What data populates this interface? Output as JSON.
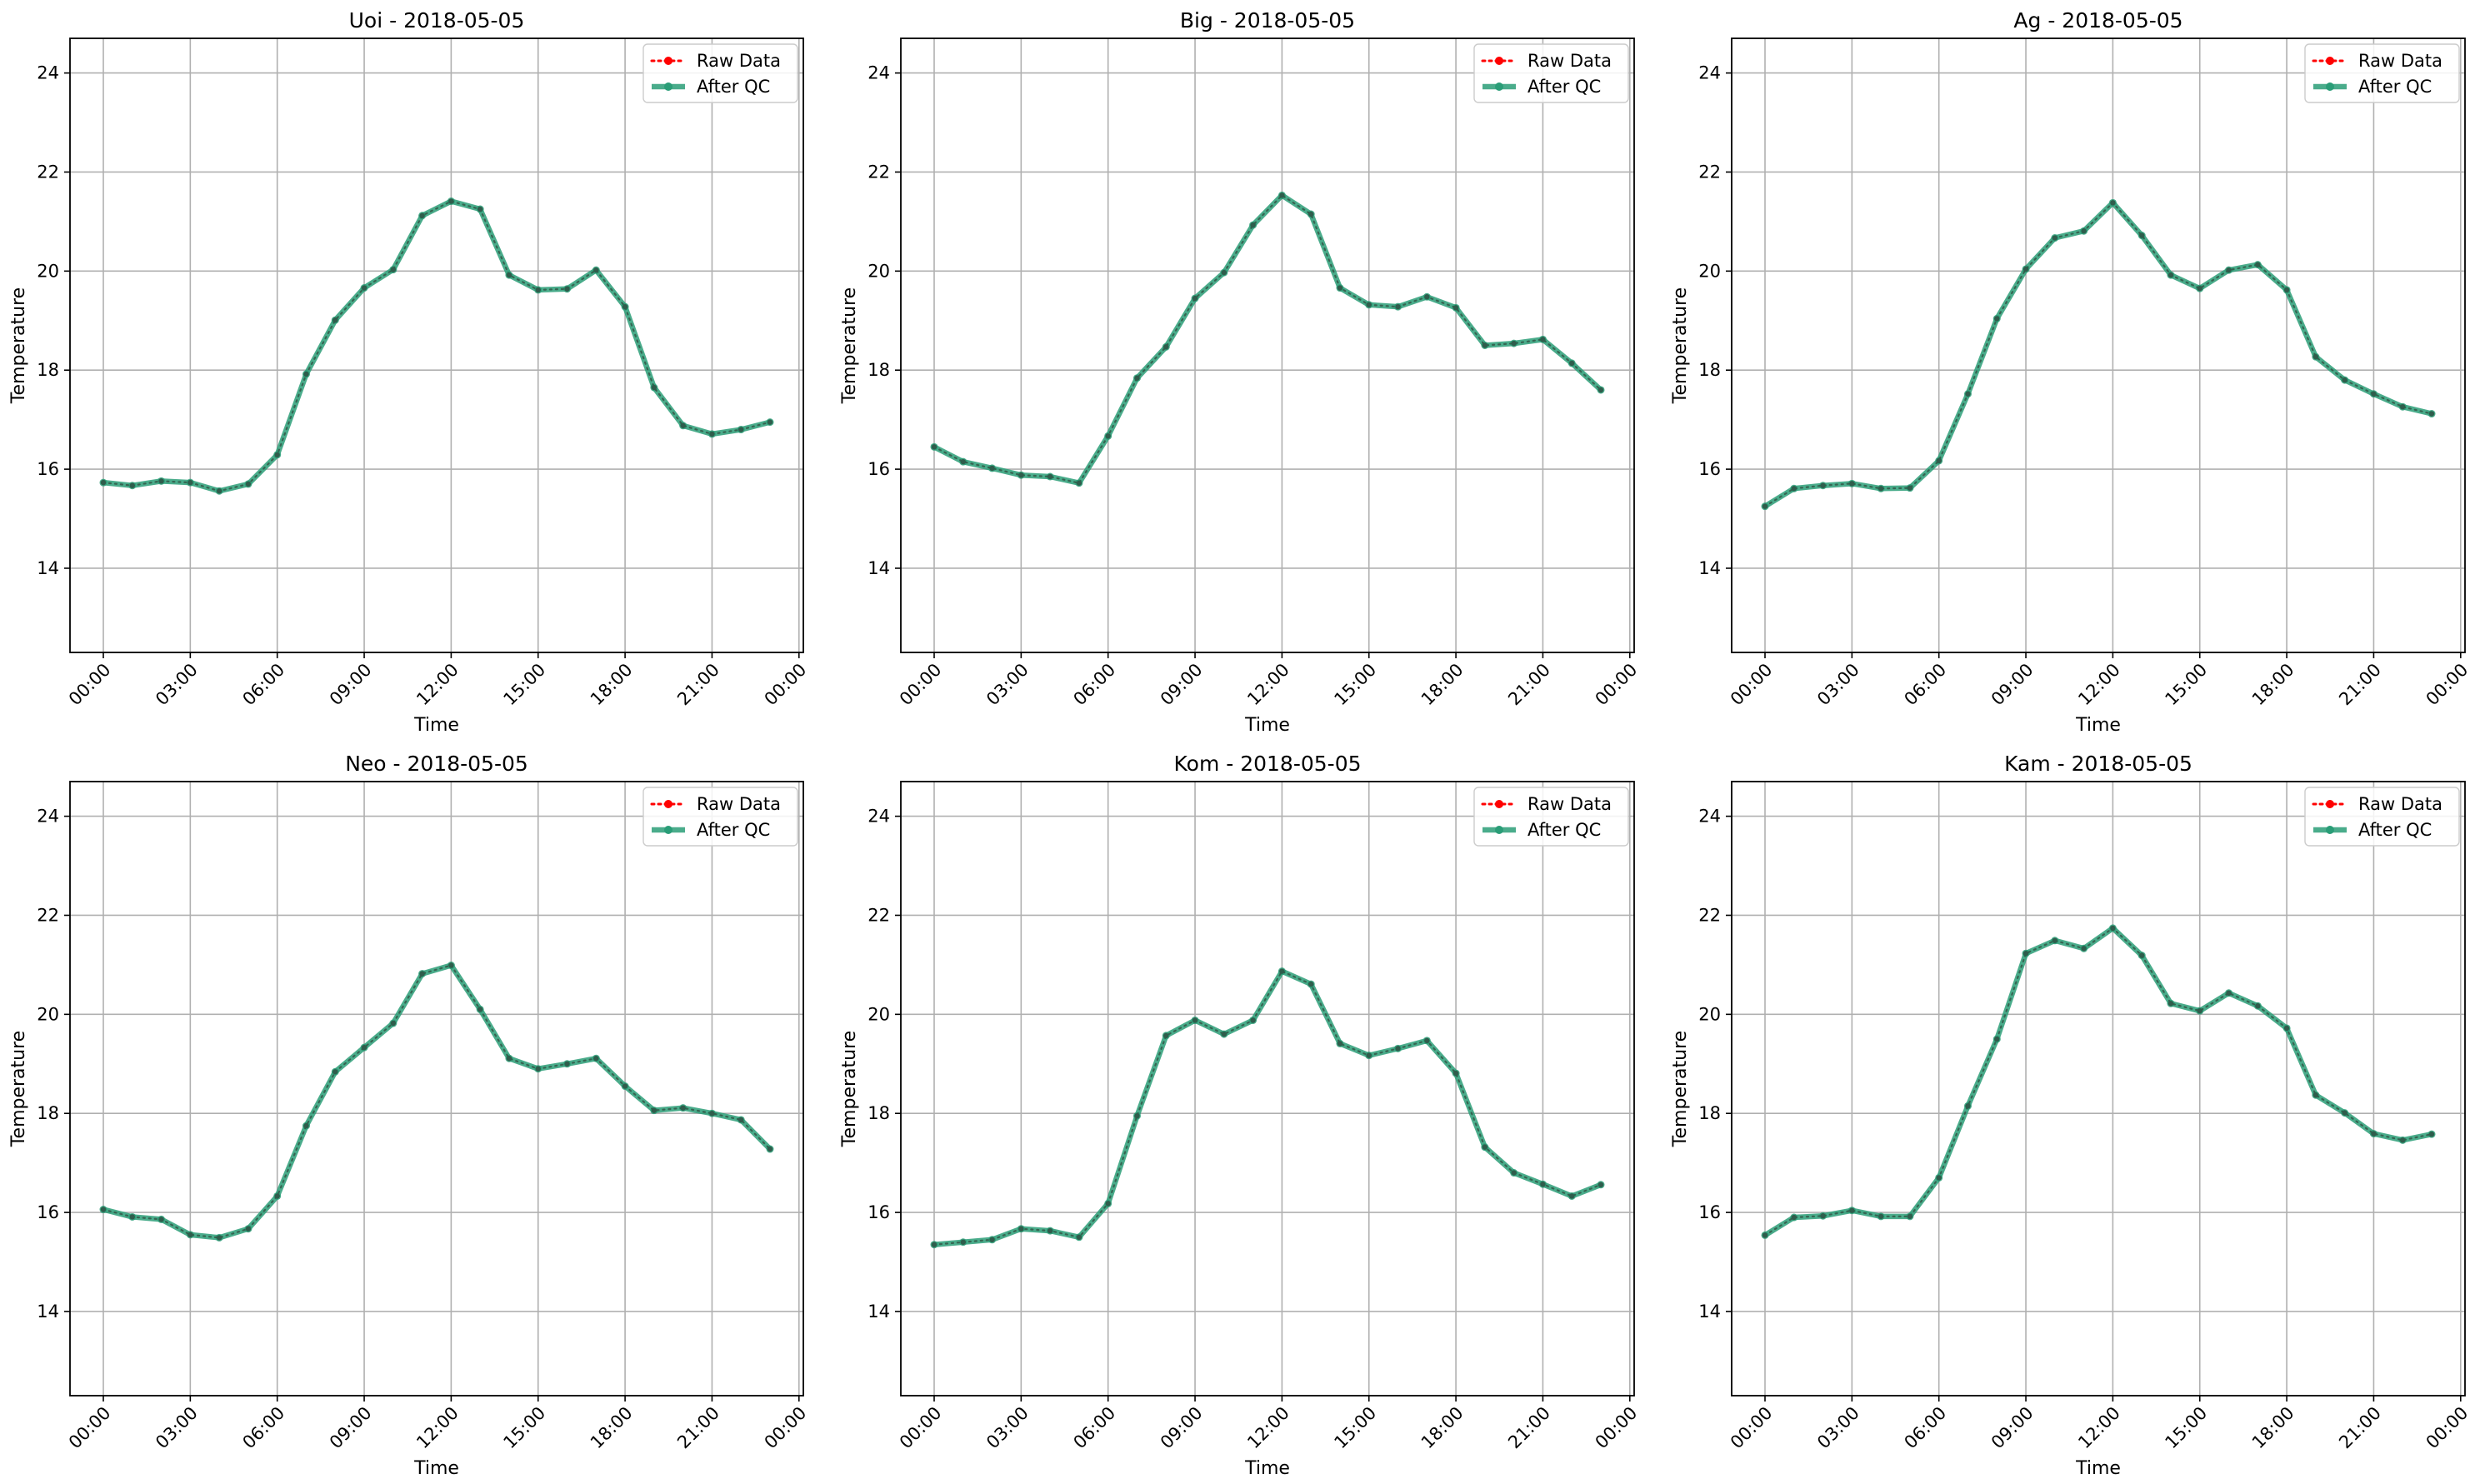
{
  "chart_data": [
    {
      "type": "line",
      "title": "Uoi - 2018-05-05",
      "xlabel": "Time",
      "ylabel": "Temperature",
      "xlim": [
        -1.15,
        24.15
      ],
      "ylim": [
        12.3,
        24.7
      ],
      "xticks": [
        "00:00",
        "03:00",
        "06:00",
        "09:00",
        "12:00",
        "15:00",
        "18:00",
        "21:00",
        "00:00"
      ],
      "yticks": [
        14,
        16,
        18,
        20,
        22,
        24
      ],
      "grid": true,
      "legend_position": "top-right",
      "x": [
        0,
        1,
        2,
        3,
        4,
        5,
        6,
        7,
        8,
        9,
        10,
        11,
        12,
        13,
        14,
        15,
        16,
        17,
        18,
        19,
        20,
        21,
        22,
        23
      ],
      "series": [
        {
          "name": "Raw Data",
          "color": "#ff0000",
          "values": [
            15.73,
            15.67,
            15.76,
            15.73,
            15.56,
            15.7,
            16.29,
            17.92,
            19.01,
            19.66,
            20.03,
            21.12,
            21.41,
            21.25,
            19.92,
            19.62,
            19.64,
            20.02,
            19.28,
            17.65,
            16.88,
            16.71,
            16.8,
            16.95
          ]
        },
        {
          "name": "After QC",
          "color": "#2a9d77",
          "values": [
            15.73,
            15.67,
            15.76,
            15.73,
            15.56,
            15.7,
            16.29,
            17.92,
            19.01,
            19.66,
            20.03,
            21.12,
            21.41,
            21.25,
            19.92,
            19.62,
            19.64,
            20.02,
            19.28,
            17.65,
            16.88,
            16.71,
            16.8,
            16.95
          ]
        }
      ]
    },
    {
      "type": "line",
      "title": "Big - 2018-05-05",
      "xlabel": "Time",
      "ylabel": "Temperature",
      "xlim": [
        -1.15,
        24.15
      ],
      "ylim": [
        12.3,
        24.7
      ],
      "xticks": [
        "00:00",
        "03:00",
        "06:00",
        "09:00",
        "12:00",
        "15:00",
        "18:00",
        "21:00",
        "00:00"
      ],
      "yticks": [
        14,
        16,
        18,
        20,
        22,
        24
      ],
      "grid": true,
      "legend_position": "top-right",
      "x": [
        0,
        1,
        2,
        3,
        4,
        5,
        6,
        7,
        8,
        9,
        10,
        11,
        12,
        13,
        14,
        15,
        16,
        17,
        18,
        19,
        20,
        21,
        22,
        23
      ],
      "series": [
        {
          "name": "Raw Data",
          "color": "#ff0000",
          "values": [
            16.45,
            16.15,
            16.02,
            15.88,
            15.85,
            15.72,
            16.67,
            17.84,
            18.47,
            19.45,
            19.97,
            20.93,
            21.53,
            21.15,
            19.66,
            19.32,
            19.28,
            19.48,
            19.26,
            18.5,
            18.54,
            18.62,
            18.14,
            17.6
          ]
        },
        {
          "name": "After QC",
          "color": "#2a9d77",
          "values": [
            16.45,
            16.15,
            16.02,
            15.88,
            15.85,
            15.72,
            16.67,
            17.84,
            18.47,
            19.45,
            19.97,
            20.93,
            21.53,
            21.15,
            19.66,
            19.32,
            19.28,
            19.48,
            19.26,
            18.5,
            18.54,
            18.62,
            18.14,
            17.6
          ]
        }
      ]
    },
    {
      "type": "line",
      "title": "Ag - 2018-05-05",
      "xlabel": "Time",
      "ylabel": "Temperature",
      "xlim": [
        -1.15,
        24.15
      ],
      "ylim": [
        12.3,
        24.7
      ],
      "xticks": [
        "00:00",
        "03:00",
        "06:00",
        "09:00",
        "12:00",
        "15:00",
        "18:00",
        "21:00",
        "00:00"
      ],
      "yticks": [
        14,
        16,
        18,
        20,
        22,
        24
      ],
      "grid": true,
      "legend_position": "top-right",
      "x": [
        0,
        1,
        2,
        3,
        4,
        5,
        6,
        7,
        8,
        9,
        10,
        11,
        12,
        13,
        14,
        15,
        16,
        17,
        18,
        19,
        20,
        21,
        22,
        23
      ],
      "series": [
        {
          "name": "Raw Data",
          "color": "#ff0000",
          "values": [
            15.25,
            15.61,
            15.67,
            15.71,
            15.61,
            15.62,
            16.17,
            17.52,
            19.04,
            20.04,
            20.67,
            20.81,
            21.38,
            20.72,
            19.92,
            19.65,
            20.02,
            20.13,
            19.62,
            18.27,
            17.8,
            17.52,
            17.26,
            17.12
          ]
        },
        {
          "name": "After QC",
          "color": "#2a9d77",
          "values": [
            15.25,
            15.61,
            15.67,
            15.71,
            15.61,
            15.62,
            16.17,
            17.52,
            19.04,
            20.04,
            20.67,
            20.81,
            21.38,
            20.72,
            19.92,
            19.65,
            20.02,
            20.13,
            19.62,
            18.27,
            17.8,
            17.52,
            17.26,
            17.12
          ]
        }
      ]
    },
    {
      "type": "line",
      "title": "Neo - 2018-05-05",
      "xlabel": "Time",
      "ylabel": "Temperature",
      "xlim": [
        -1.15,
        24.15
      ],
      "ylim": [
        12.3,
        24.7
      ],
      "xticks": [
        "00:00",
        "03:00",
        "06:00",
        "09:00",
        "12:00",
        "15:00",
        "18:00",
        "21:00",
        "00:00"
      ],
      "yticks": [
        14,
        16,
        18,
        20,
        22,
        24
      ],
      "grid": true,
      "legend_position": "top-right",
      "x": [
        0,
        1,
        2,
        3,
        4,
        5,
        6,
        7,
        8,
        9,
        10,
        11,
        12,
        13,
        14,
        15,
        16,
        17,
        18,
        19,
        20,
        21,
        22,
        23
      ],
      "series": [
        {
          "name": "Raw Data",
          "color": "#ff0000",
          "values": [
            16.06,
            15.91,
            15.86,
            15.55,
            15.49,
            15.67,
            16.33,
            17.75,
            18.84,
            19.33,
            19.82,
            20.82,
            20.99,
            20.1,
            19.11,
            18.9,
            19.0,
            19.11,
            18.55,
            18.06,
            18.11,
            18.0,
            17.87,
            17.28
          ]
        },
        {
          "name": "After QC",
          "color": "#2a9d77",
          "values": [
            16.06,
            15.91,
            15.86,
            15.55,
            15.49,
            15.67,
            16.33,
            17.75,
            18.84,
            19.33,
            19.82,
            20.82,
            20.99,
            20.1,
            19.11,
            18.9,
            19.0,
            19.11,
            18.55,
            18.06,
            18.11,
            18.0,
            17.87,
            17.28
          ]
        }
      ]
    },
    {
      "type": "line",
      "title": "Kom - 2018-05-05",
      "xlabel": "Time",
      "ylabel": "Temperature",
      "xlim": [
        -1.15,
        24.15
      ],
      "ylim": [
        12.3,
        24.7
      ],
      "xticks": [
        "00:00",
        "03:00",
        "06:00",
        "09:00",
        "12:00",
        "15:00",
        "18:00",
        "21:00",
        "00:00"
      ],
      "yticks": [
        14,
        16,
        18,
        20,
        22,
        24
      ],
      "grid": true,
      "legend_position": "top-right",
      "x": [
        0,
        1,
        2,
        3,
        4,
        5,
        6,
        7,
        8,
        9,
        10,
        11,
        12,
        13,
        14,
        15,
        16,
        17,
        18,
        19,
        20,
        21,
        22,
        23
      ],
      "series": [
        {
          "name": "Raw Data",
          "color": "#ff0000",
          "values": [
            15.35,
            15.4,
            15.45,
            15.67,
            15.63,
            15.5,
            16.18,
            17.95,
            19.57,
            19.88,
            19.6,
            19.88,
            20.87,
            20.61,
            19.41,
            19.17,
            19.31,
            19.47,
            18.81,
            17.32,
            16.8,
            16.57,
            16.33,
            16.56
          ]
        },
        {
          "name": "After QC",
          "color": "#2a9d77",
          "values": [
            15.35,
            15.4,
            15.45,
            15.67,
            15.63,
            15.5,
            16.18,
            17.95,
            19.57,
            19.88,
            19.6,
            19.88,
            20.87,
            20.61,
            19.41,
            19.17,
            19.31,
            19.47,
            18.81,
            17.32,
            16.8,
            16.57,
            16.33,
            16.56
          ]
        }
      ]
    },
    {
      "type": "line",
      "title": "Kam - 2018-05-05",
      "xlabel": "Time",
      "ylabel": "Temperature",
      "xlim": [
        -1.15,
        24.15
      ],
      "ylim": [
        12.3,
        24.7
      ],
      "xticks": [
        "00:00",
        "03:00",
        "06:00",
        "09:00",
        "12:00",
        "15:00",
        "18:00",
        "21:00",
        "00:00"
      ],
      "yticks": [
        14,
        16,
        18,
        20,
        22,
        24
      ],
      "grid": true,
      "legend_position": "top-right",
      "x": [
        0,
        1,
        2,
        3,
        4,
        5,
        6,
        7,
        8,
        9,
        10,
        11,
        12,
        13,
        14,
        15,
        16,
        17,
        18,
        19,
        20,
        21,
        22,
        23
      ],
      "series": [
        {
          "name": "Raw Data",
          "color": "#ff0000",
          "values": [
            15.54,
            15.9,
            15.93,
            16.04,
            15.92,
            15.92,
            16.7,
            18.15,
            19.5,
            21.23,
            21.49,
            21.33,
            21.74,
            21.19,
            20.22,
            20.07,
            20.43,
            20.17,
            19.72,
            18.37,
            18.01,
            17.59,
            17.46,
            17.58
          ]
        },
        {
          "name": "After QC",
          "color": "#2a9d77",
          "values": [
            15.54,
            15.9,
            15.93,
            16.04,
            15.92,
            15.92,
            16.7,
            18.15,
            19.5,
            21.23,
            21.49,
            21.33,
            21.74,
            21.19,
            20.22,
            20.07,
            20.43,
            20.17,
            19.72,
            18.37,
            18.01,
            17.59,
            17.46,
            17.58
          ]
        }
      ]
    }
  ]
}
